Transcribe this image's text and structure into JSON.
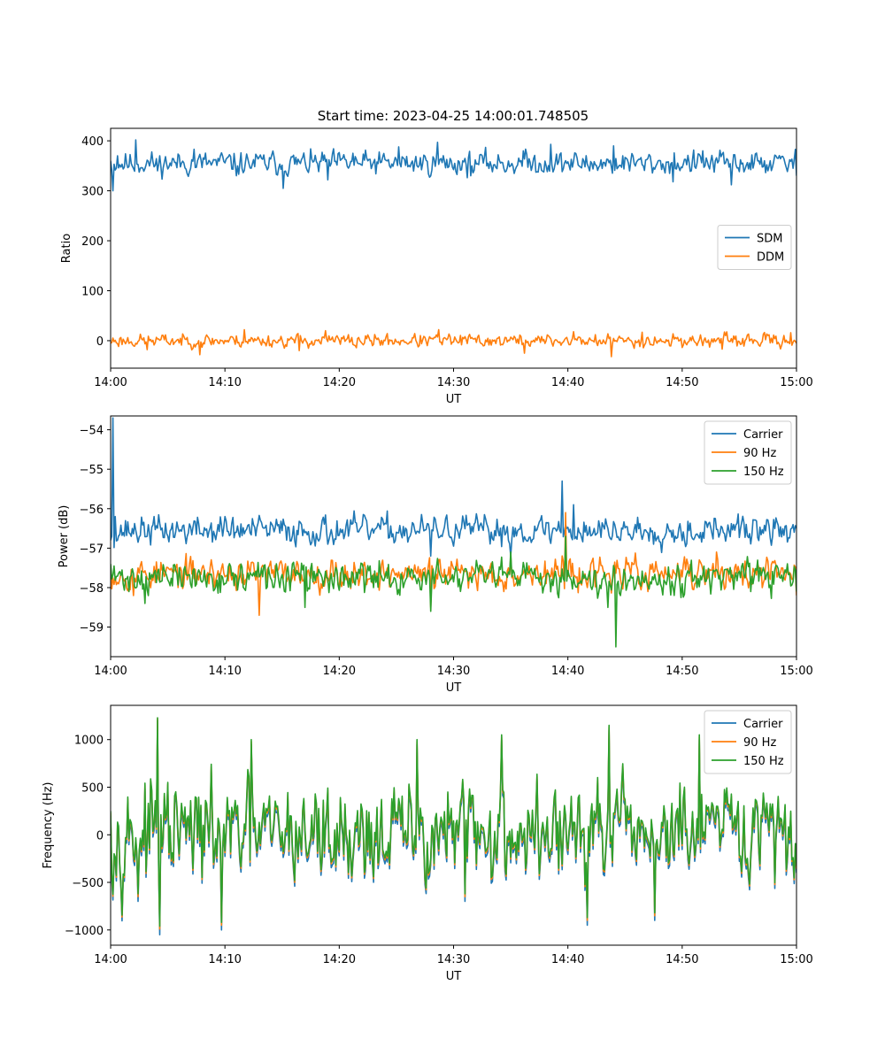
{
  "title": "Start time: 2023-04-25 14:00:01.748505",
  "colors": {
    "c0": "#1f77b4",
    "c1": "#ff7f0e",
    "c2": "#2ca02c"
  },
  "chart_data": [
    {
      "type": "line",
      "xlabel": "UT",
      "ylabel": "Ratio",
      "xlim": [
        0,
        60
      ],
      "ylim": [
        -55,
        425
      ],
      "xticks": [
        "14:00",
        "14:10",
        "14:20",
        "14:30",
        "14:40",
        "14:50",
        "15:00"
      ],
      "yticks": [
        0,
        100,
        200,
        300,
        400
      ],
      "legend": "center-right",
      "series": [
        {
          "name": "SDM",
          "color": "#1f77b4",
          "mean": 355,
          "amp": 18,
          "seed": 11,
          "points": [
            [
              0,
              360
            ],
            [
              0.2,
              300
            ],
            [
              0.6,
              370
            ],
            [
              2.2,
              402
            ],
            [
              4.1,
              340
            ],
            [
              7.3,
              383
            ],
            [
              11,
              330
            ],
            [
              15.1,
              305
            ],
            [
              19,
              322
            ],
            [
              21.2,
              375
            ],
            [
              25.2,
              388
            ],
            [
              28.6,
              397
            ],
            [
              31.5,
              330
            ],
            [
              36.1,
              380
            ],
            [
              38.5,
              393
            ],
            [
              41.9,
              340
            ],
            [
              44,
              390
            ],
            [
              46.6,
              350
            ],
            [
              49.2,
              318
            ],
            [
              51.8,
              380
            ],
            [
              54.3,
              312
            ],
            [
              57.7,
              360
            ],
            [
              60,
              330
            ]
          ]
        },
        {
          "name": "DDM",
          "color": "#ff7f0e",
          "mean": 0,
          "amp": 10,
          "seed": 23,
          "points": [
            [
              0,
              -5
            ],
            [
              3.2,
              -18
            ],
            [
              7.8,
              -28
            ],
            [
              11.7,
              22
            ],
            [
              16.5,
              -20
            ],
            [
              18.8,
              20
            ],
            [
              21.5,
              -14
            ],
            [
              28.7,
              22
            ],
            [
              36.2,
              -25
            ],
            [
              40.5,
              18
            ],
            [
              43.8,
              -32
            ],
            [
              46.5,
              17
            ],
            [
              53.5,
              -17
            ],
            [
              59.5,
              16
            ],
            [
              60,
              -5
            ]
          ]
        }
      ]
    },
    {
      "type": "line",
      "xlabel": "UT",
      "ylabel": "Power (dB)",
      "xlim": [
        0,
        60
      ],
      "ylim": [
        -59.75,
        -53.65
      ],
      "xticks": [
        "14:00",
        "14:10",
        "14:20",
        "14:30",
        "14:40",
        "14:50",
        "15:00"
      ],
      "yticks": [
        -59,
        -58,
        -57,
        -56,
        -55,
        -54
      ],
      "legend": "top-right",
      "series": [
        {
          "name": "Carrier",
          "color": "#1f77b4",
          "mean": -56.55,
          "amp": 0.28,
          "seed": 37,
          "points": [
            [
              0,
              -56.8
            ],
            [
              0.15,
              -53.7
            ],
            [
              0.4,
              -56.2
            ],
            [
              0.6,
              -56.8
            ],
            [
              10,
              -56.2
            ],
            [
              19,
              -56.9
            ],
            [
              28,
              -57.2
            ],
            [
              33.5,
              -56.8
            ],
            [
              35,
              -57.2
            ],
            [
              39.5,
              -55.3
            ],
            [
              40.5,
              -55.9
            ],
            [
              43.5,
              -56.5
            ],
            [
              47.5,
              -56.9
            ],
            [
              54.5,
              -56.4
            ],
            [
              60,
              -56.5
            ]
          ]
        },
        {
          "name": "90 Hz",
          "color": "#ff7f0e",
          "mean": -57.65,
          "amp": 0.3,
          "seed": 53,
          "points": [
            [
              0,
              -57.5
            ],
            [
              2,
              -58.2
            ],
            [
              8,
              -57.5
            ],
            [
              13,
              -58.7
            ],
            [
              20,
              -58
            ],
            [
              28,
              -58.5
            ],
            [
              35,
              -57.2
            ],
            [
              39.8,
              -56.1
            ],
            [
              41,
              -57.5
            ],
            [
              47,
              -58.1
            ],
            [
              53,
              -57.1
            ],
            [
              57,
              -58
            ],
            [
              60,
              -58.2
            ]
          ]
        },
        {
          "name": "150 Hz",
          "color": "#2ca02c",
          "mean": -57.75,
          "amp": 0.3,
          "seed": 71,
          "points": [
            [
              0,
              -57.4
            ],
            [
              3,
              -58.4
            ],
            [
              10,
              -57.9
            ],
            [
              17,
              -58.5
            ],
            [
              23,
              -58
            ],
            [
              28,
              -58.6
            ],
            [
              35,
              -57.1
            ],
            [
              39.8,
              -56.7
            ],
            [
              43.5,
              -58.5
            ],
            [
              44.2,
              -59.5
            ],
            [
              44.6,
              -58.2
            ],
            [
              50,
              -57.9
            ],
            [
              56,
              -58.1
            ],
            [
              60,
              -58.1
            ]
          ]
        }
      ]
    },
    {
      "type": "line",
      "xlabel": "UT",
      "ylabel": "Frequency (Hz)",
      "xlim": [
        0,
        60
      ],
      "ylim": [
        -1160,
        1360
      ],
      "xticks": [
        "14:00",
        "14:10",
        "14:20",
        "14:30",
        "14:40",
        "14:50",
        "15:00"
      ],
      "yticks": [
        -1000,
        -500,
        0,
        500,
        1000
      ],
      "legend": "top-right",
      "series": [
        {
          "name": "Carrier",
          "color": "#1f77b4",
          "mean": -40,
          "amp": 390,
          "seed": 97,
          "points": [
            [
              0,
              200
            ],
            [
              2.4,
              -700
            ],
            [
              4.1,
              1200
            ],
            [
              4.3,
              -1050
            ],
            [
              9.7,
              -1000
            ],
            [
              12.3,
              950
            ],
            [
              26.8,
              950
            ],
            [
              31,
              -700
            ],
            [
              34.2,
              1000
            ],
            [
              41.7,
              -950
            ],
            [
              43.6,
              1100
            ],
            [
              47.6,
              -900
            ],
            [
              51.5,
              1000
            ],
            [
              60,
              -400
            ]
          ]
        },
        {
          "name": "90 Hz",
          "color": "#ff7f0e",
          "mean": 0,
          "amp": 390,
          "seed": 97,
          "points": [
            [
              0,
              230
            ],
            [
              2.4,
              -650
            ],
            [
              4.1,
              1220
            ],
            [
              4.3,
              -990
            ],
            [
              9.7,
              -950
            ],
            [
              12.3,
              980
            ],
            [
              26.8,
              980
            ],
            [
              31,
              -650
            ],
            [
              34.2,
              1030
            ],
            [
              41.7,
              -900
            ],
            [
              43.6,
              1130
            ],
            [
              47.6,
              -850
            ],
            [
              51.5,
              1030
            ],
            [
              60,
              -360
            ]
          ]
        },
        {
          "name": "150 Hz",
          "color": "#2ca02c",
          "mean": 20,
          "amp": 390,
          "seed": 97,
          "points": [
            [
              0,
              250
            ],
            [
              2.4,
              -620
            ],
            [
              4.1,
              1230
            ],
            [
              4.3,
              -960
            ],
            [
              9.7,
              -920
            ],
            [
              12.3,
              1000
            ],
            [
              26.8,
              1000
            ],
            [
              31,
              -620
            ],
            [
              34.2,
              1050
            ],
            [
              41.7,
              -870
            ],
            [
              43.6,
              1150
            ],
            [
              47.6,
              -820
            ],
            [
              51.5,
              1050
            ],
            [
              60,
              -330
            ]
          ]
        }
      ]
    }
  ]
}
